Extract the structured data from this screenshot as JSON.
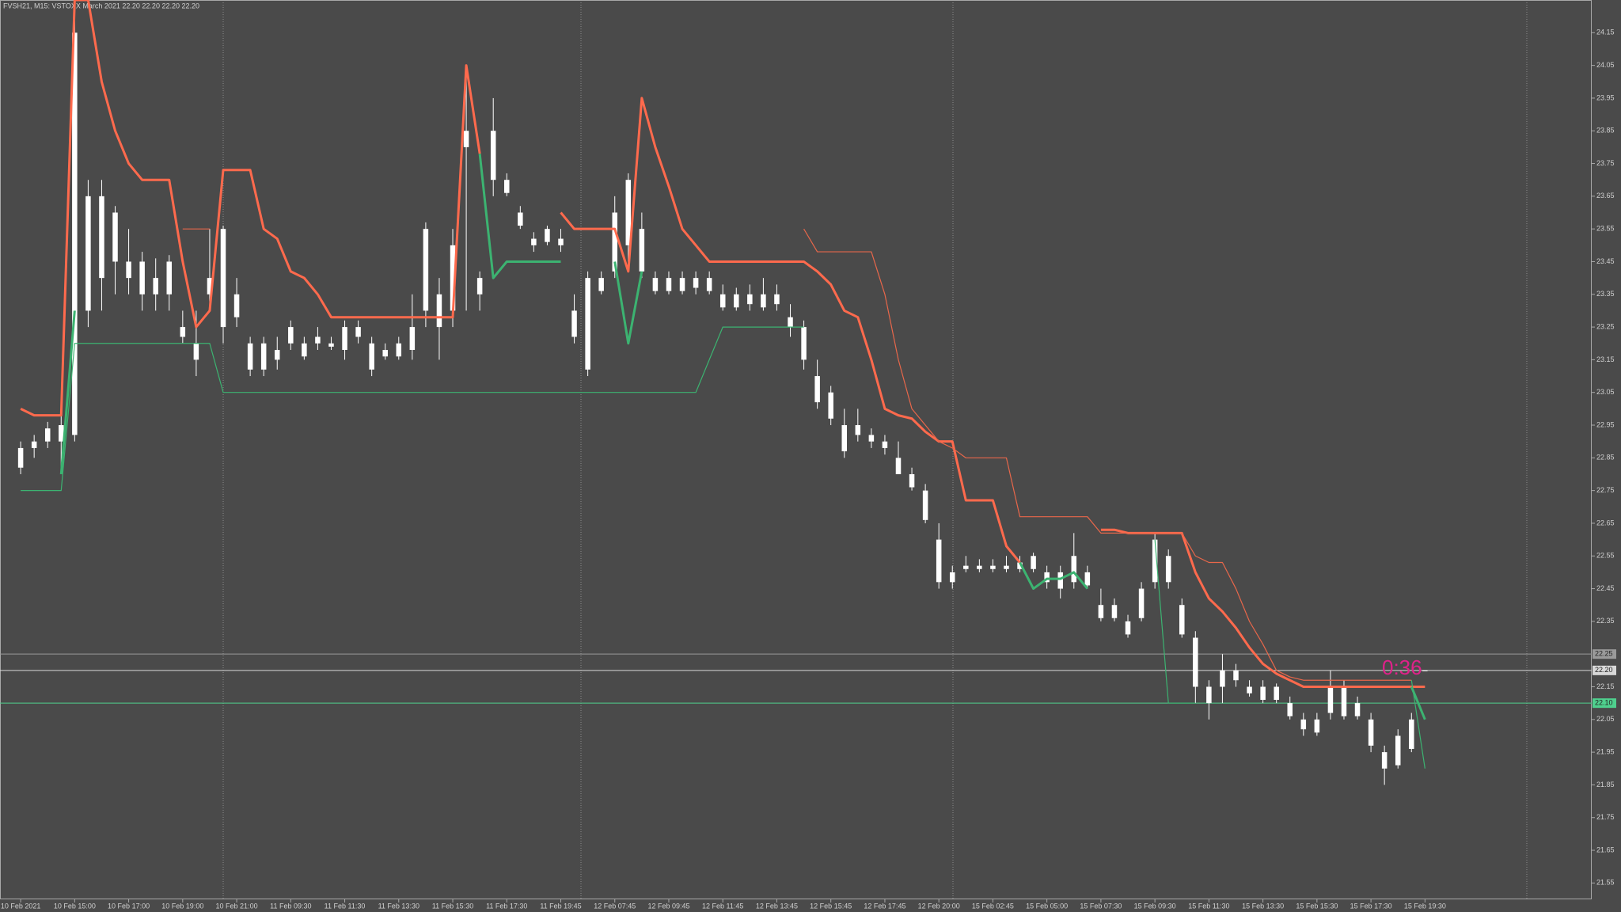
{
  "chart_data": {
    "type": "candlestick",
    "title": "FVSH21, M15:  VSTOXX March 2021  22.20 22.20 22.20 22.20",
    "annotation": "0:36",
    "annotation_color": "#e0218a",
    "background": "#4a4a4a",
    "candle_color": "#ffffff",
    "categories": [
      "10 Feb 2021",
      null,
      null,
      null,
      "10 Feb 15:00",
      null,
      null,
      null,
      "10 Feb 17:00",
      null,
      null,
      null,
      "10 Feb 19:00",
      null,
      null,
      null,
      "10 Feb 21:00",
      null,
      null,
      null,
      "11 Feb 09:30",
      null,
      null,
      null,
      "11 Feb 11:30",
      null,
      null,
      null,
      "11 Feb 13:30",
      null,
      null,
      null,
      "11 Feb 15:30",
      null,
      null,
      null,
      "11 Feb 17:30",
      null,
      null,
      null,
      "11 Feb 19:45",
      null,
      null,
      null,
      "12 Feb 07:45",
      null,
      null,
      null,
      "12 Feb 09:45",
      null,
      null,
      null,
      "12 Feb 11:45",
      null,
      null,
      null,
      "12 Feb 13:45",
      null,
      null,
      null,
      "12 Feb 15:45",
      null,
      null,
      null,
      "12 Feb 17:45",
      null,
      null,
      null,
      "12 Feb 20:00",
      null,
      null,
      null,
      "15 Feb 02:45",
      null,
      null,
      null,
      "15 Feb 05:00",
      null,
      null,
      null,
      "15 Feb 07:30",
      null,
      null,
      null,
      "15 Feb 09:30",
      null,
      null,
      null,
      "15 Feb 11:30",
      null,
      null,
      null,
      "15 Feb 13:30",
      null,
      null,
      null,
      "15 Feb 15:30",
      null,
      null,
      null,
      "15 Feb 17:30",
      null,
      null,
      null,
      "15 Feb 19:30"
    ],
    "open": [
      22.82,
      22.88,
      22.9,
      22.95,
      22.92,
      23.3,
      23.4,
      23.6,
      23.45,
      23.45,
      23.4,
      23.45,
      23.25,
      23.2,
      23.4,
      23.55,
      23.35,
      23.2,
      23.2,
      23.18,
      23.25,
      23.2,
      23.22,
      23.2,
      23.25,
      23.25,
      23.2,
      23.18,
      23.2,
      23.18,
      23.55,
      23.35,
      23.3,
      23.85,
      23.4,
      23.85,
      23.7,
      23.6,
      23.52,
      23.55,
      23.52,
      23.3,
      23.4,
      23.4,
      23.6,
      23.7,
      23.55,
      23.4,
      23.4,
      23.4,
      23.4,
      23.4,
      23.35,
      23.35,
      23.35,
      23.35,
      23.35,
      23.28,
      23.25,
      23.1,
      23.05,
      22.95,
      22.95,
      22.92,
      22.9,
      22.85,
      22.8,
      22.75,
      22.6,
      22.5,
      22.52,
      22.52,
      22.52,
      22.52,
      22.53,
      22.55,
      22.5,
      22.5,
      22.55,
      22.5,
      22.4,
      22.4,
      22.35,
      22.45,
      22.6,
      22.55,
      22.4,
      22.3,
      22.15,
      22.15,
      22.2,
      22.15,
      22.15,
      22.15,
      22.1,
      22.05,
      22.05,
      22.15,
      22.15,
      22.1,
      22.05,
      21.95,
      22.0,
      22.05,
      22.2
    ],
    "high": [
      22.9,
      22.92,
      22.96,
      23.0,
      24.25,
      23.7,
      23.7,
      23.62,
      23.55,
      23.48,
      23.46,
      23.47,
      23.3,
      23.3,
      23.55,
      23.56,
      23.4,
      23.22,
      23.22,
      23.22,
      23.27,
      23.22,
      23.25,
      23.22,
      23.27,
      23.27,
      23.22,
      23.2,
      23.22,
      23.35,
      23.57,
      23.4,
      23.55,
      24.05,
      23.42,
      23.95,
      23.72,
      23.62,
      23.54,
      23.56,
      23.55,
      23.35,
      23.42,
      23.42,
      23.65,
      23.72,
      23.6,
      23.42,
      23.42,
      23.42,
      23.42,
      23.42,
      23.38,
      23.37,
      23.38,
      23.4,
      23.38,
      23.32,
      23.27,
      23.15,
      23.07,
      23.0,
      23.0,
      22.94,
      22.92,
      22.9,
      22.82,
      22.77,
      22.65,
      22.52,
      22.55,
      22.54,
      22.54,
      22.55,
      22.55,
      22.56,
      22.52,
      22.52,
      22.62,
      22.52,
      22.45,
      22.42,
      22.37,
      22.47,
      22.62,
      22.57,
      22.42,
      22.32,
      22.17,
      22.25,
      22.22,
      22.17,
      22.17,
      22.16,
      22.12,
      22.07,
      22.07,
      22.2,
      22.17,
      22.12,
      22.07,
      21.97,
      22.02,
      22.07,
      22.2
    ],
    "low": [
      22.8,
      22.85,
      22.88,
      22.8,
      22.9,
      23.25,
      23.3,
      23.35,
      23.35,
      23.3,
      23.3,
      23.3,
      23.2,
      23.1,
      23.3,
      23.2,
      23.25,
      23.1,
      23.1,
      23.12,
      23.18,
      23.15,
      23.18,
      23.18,
      23.15,
      23.2,
      23.1,
      23.15,
      23.15,
      23.15,
      23.25,
      23.15,
      23.25,
      23.3,
      23.3,
      23.65,
      23.65,
      23.55,
      23.48,
      23.5,
      23.48,
      23.2,
      23.1,
      23.35,
      23.4,
      23.45,
      23.4,
      23.35,
      23.35,
      23.35,
      23.35,
      23.35,
      23.3,
      23.3,
      23.3,
      23.3,
      23.3,
      23.22,
      23.12,
      23.0,
      22.95,
      22.85,
      22.9,
      22.88,
      22.86,
      22.8,
      22.75,
      22.65,
      22.45,
      22.45,
      22.5,
      22.5,
      22.5,
      22.5,
      22.5,
      22.5,
      22.45,
      22.42,
      22.45,
      22.45,
      22.35,
      22.35,
      22.3,
      22.35,
      22.45,
      22.45,
      22.3,
      22.1,
      22.05,
      22.1,
      22.15,
      22.12,
      22.1,
      22.1,
      22.05,
      22.0,
      22.0,
      22.05,
      22.05,
      22.05,
      21.95,
      21.85,
      21.9,
      21.95,
      22.2
    ],
    "close": [
      22.88,
      22.9,
      22.94,
      22.9,
      24.15,
      23.65,
      23.65,
      23.45,
      23.4,
      23.35,
      23.35,
      23.35,
      23.22,
      23.15,
      23.35,
      23.25,
      23.28,
      23.12,
      23.12,
      23.15,
      23.2,
      23.16,
      23.2,
      23.19,
      23.18,
      23.22,
      23.12,
      23.16,
      23.16,
      23.25,
      23.3,
      23.25,
      23.5,
      23.8,
      23.35,
      23.7,
      23.66,
      23.56,
      23.5,
      23.51,
      23.5,
      23.22,
      23.12,
      23.36,
      23.42,
      23.5,
      23.42,
      23.36,
      23.36,
      23.36,
      23.37,
      23.36,
      23.31,
      23.31,
      23.32,
      23.31,
      23.32,
      23.25,
      23.15,
      23.02,
      22.97,
      22.87,
      22.92,
      22.9,
      22.88,
      22.8,
      22.76,
      22.66,
      22.47,
      22.47,
      22.51,
      22.51,
      22.51,
      22.51,
      22.51,
      22.51,
      22.47,
      22.45,
      22.47,
      22.46,
      22.36,
      22.36,
      22.31,
      22.36,
      22.47,
      22.47,
      22.31,
      22.15,
      22.1,
      22.2,
      22.17,
      22.13,
      22.11,
      22.11,
      22.06,
      22.02,
      22.01,
      22.07,
      22.06,
      22.06,
      21.97,
      21.9,
      21.91,
      21.96,
      22.2
    ],
    "series": [
      {
        "color": "#ff6a4d",
        "values": [
          23.0,
          22.98,
          22.98,
          22.98,
          24.25,
          24.25,
          24.0,
          23.85,
          23.75,
          23.7,
          23.7,
          23.7,
          23.45,
          23.25,
          23.3,
          23.73,
          23.73,
          23.73,
          23.55,
          23.52,
          23.42,
          23.4,
          23.35,
          23.28,
          23.28,
          23.28,
          23.28,
          23.28,
          23.28,
          23.28,
          23.28,
          23.28,
          23.28,
          24.05,
          23.78,
          null,
          null,
          null,
          null,
          null,
          23.6,
          23.55,
          23.55,
          23.55,
          23.55,
          23.42,
          23.95,
          23.8,
          23.68,
          23.55,
          23.5,
          23.45,
          23.45,
          23.45,
          23.45,
          23.45,
          23.45,
          23.45,
          23.45,
          23.42,
          23.38,
          23.3,
          23.28,
          23.15,
          23.0,
          22.98,
          22.97,
          22.93,
          22.9,
          22.9,
          22.72,
          22.72,
          22.72,
          22.58,
          22.53,
          null,
          null,
          null,
          null,
          null,
          22.63,
          22.63,
          22.62,
          22.62,
          22.62,
          22.62,
          22.62,
          22.5,
          22.42,
          22.38,
          22.33,
          22.27,
          22.22,
          22.19,
          22.17,
          22.15,
          22.15,
          22.15,
          22.15,
          22.15,
          22.15,
          22.15,
          22.15,
          22.15,
          22.15
        ]
      },
      {
        "color": "#3cb371",
        "values": [
          null,
          null,
          null,
          22.8,
          23.3,
          null,
          null,
          null,
          null,
          null,
          null,
          null,
          null,
          null,
          null,
          null,
          null,
          null,
          null,
          null,
          null,
          null,
          null,
          null,
          null,
          null,
          null,
          null,
          null,
          null,
          null,
          null,
          null,
          null,
          23.78,
          23.4,
          23.45,
          23.45,
          23.45,
          23.45,
          23.45,
          null,
          null,
          null,
          23.45,
          23.2,
          23.42,
          null,
          null,
          null,
          null,
          null,
          null,
          null,
          null,
          null,
          null,
          null,
          null,
          null,
          null,
          null,
          null,
          null,
          null,
          null,
          null,
          null,
          null,
          null,
          null,
          null,
          null,
          null,
          22.53,
          22.45,
          22.48,
          22.48,
          22.5,
          22.45,
          null,
          null,
          null,
          null,
          null,
          null,
          null,
          null,
          null,
          null,
          null,
          null,
          null,
          null,
          null,
          null,
          null,
          null,
          null,
          null,
          null,
          null,
          null,
          22.15,
          22.05
        ]
      },
      {
        "color": "#e8674a",
        "values": [
          null,
          null,
          null,
          null,
          null,
          null,
          null,
          null,
          null,
          null,
          null,
          null,
          23.55,
          23.55,
          23.55,
          null,
          null,
          null,
          null,
          null,
          null,
          null,
          null,
          null,
          null,
          null,
          null,
          null,
          null,
          null,
          null,
          null,
          null,
          null,
          null,
          null,
          null,
          null,
          null,
          null,
          null,
          null,
          null,
          null,
          null,
          null,
          null,
          null,
          null,
          null,
          null,
          null,
          null,
          null,
          null,
          null,
          null,
          null,
          23.55,
          23.48,
          23.48,
          23.48,
          23.48,
          23.48,
          23.35,
          23.15,
          23.0,
          22.95,
          22.9,
          22.88,
          22.85,
          22.85,
          22.85,
          22.85,
          22.67,
          22.67,
          22.67,
          22.67,
          22.67,
          22.67,
          22.62,
          22.62,
          22.62,
          22.62,
          22.62,
          22.62,
          22.62,
          22.55,
          22.53,
          22.53,
          22.45,
          22.35,
          22.28,
          22.2,
          22.18,
          22.17,
          22.17,
          22.17,
          22.17,
          22.17,
          22.17,
          22.17,
          22.17,
          22.17,
          null
        ]
      },
      {
        "color": "#3cb371",
        "values": [
          22.75,
          22.75,
          22.75,
          22.75,
          23.2,
          23.2,
          23.2,
          23.2,
          23.2,
          23.2,
          23.2,
          23.2,
          23.2,
          23.2,
          23.2,
          23.05,
          23.05,
          23.05,
          23.05,
          23.05,
          23.05,
          23.05,
          23.05,
          23.05,
          23.05,
          23.05,
          23.05,
          23.05,
          23.05,
          23.05,
          23.05,
          23.05,
          23.05,
          23.05,
          23.05,
          23.05,
          23.05,
          23.05,
          23.05,
          23.05,
          23.05,
          23.05,
          23.05,
          23.05,
          23.05,
          23.05,
          23.05,
          23.05,
          23.05,
          23.05,
          23.05,
          23.15,
          23.25,
          23.25,
          23.25,
          23.25,
          23.25,
          23.25,
          23.25,
          null,
          null,
          null,
          null,
          null,
          null,
          null,
          null,
          null,
          null,
          null,
          null,
          null,
          null,
          null,
          null,
          null,
          null,
          null,
          null,
          null,
          null,
          null,
          null,
          null,
          22.6,
          22.1,
          22.1,
          22.1,
          null,
          null,
          null,
          null,
          null,
          null,
          null,
          null,
          null,
          null,
          null,
          null,
          null,
          null,
          null,
          22.17,
          21.9
        ]
      }
    ],
    "levels": [
      {
        "value": 22.25,
        "color": "#9a9a9a"
      },
      {
        "value": 22.2,
        "label": "22.20",
        "color": "#d8d8d8"
      },
      {
        "value": 22.1,
        "label": "22.10",
        "color": "#4fd08e"
      }
    ],
    "ylim": [
      21.5,
      24.25
    ],
    "yticks": [
      24.15,
      24.05,
      23.95,
      23.85,
      23.75,
      23.65,
      23.55,
      23.45,
      23.35,
      23.25,
      23.15,
      23.05,
      22.95,
      22.85,
      22.75,
      22.65,
      22.55,
      22.45,
      22.35,
      22.15,
      22.05,
      21.95,
      21.85,
      21.75,
      21.65,
      21.55
    ],
    "grid": false
  }
}
